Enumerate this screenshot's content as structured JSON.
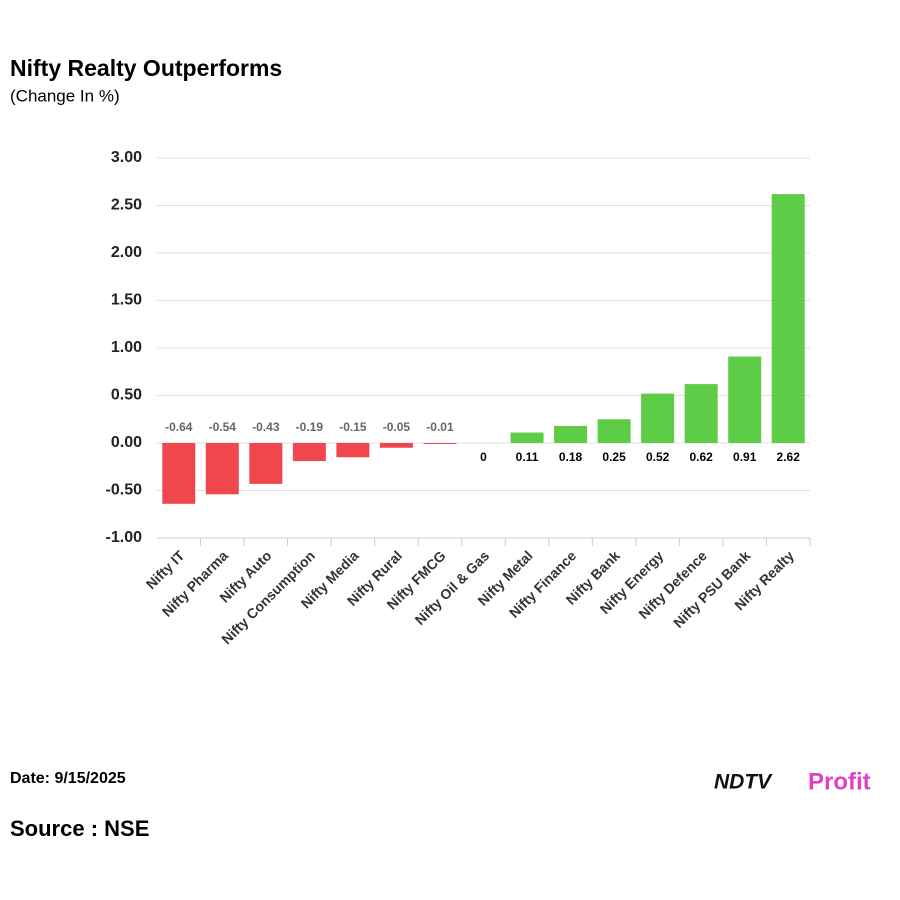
{
  "chart_data": {
    "type": "bar",
    "title": "Nifty Realty Outperforms",
    "subtitle": "(Change In %)",
    "categories": [
      "Nifty IT",
      "Nifty Pharma",
      "Nifty Auto",
      "Nifty Consumption",
      "Nifty Media",
      "Nifty Rural",
      "Nifty FMCG",
      "Nifty Oil & Gas",
      "Nifty Metal",
      "Nifty Finance",
      "Nifty Bank",
      "Nifty Energy",
      "Nifty Defence",
      "Nifty PSU Bank",
      "Nifty Realty"
    ],
    "values": [
      -0.64,
      -0.54,
      -0.43,
      -0.19,
      -0.15,
      -0.05,
      -0.01,
      0,
      0.11,
      0.18,
      0.25,
      0.52,
      0.62,
      0.91,
      2.62
    ],
    "positive_color": "#5fcc47",
    "negative_color": "#f0474f",
    "ylim": [
      -1,
      3
    ],
    "yticks": [
      {
        "value": -1,
        "label": "-1.00"
      },
      {
        "value": -0.5,
        "label": "-0.50"
      },
      {
        "value": 0,
        "label": "0.00"
      },
      {
        "value": 0.5,
        "label": "0.50"
      },
      {
        "value": 1,
        "label": "1.00"
      },
      {
        "value": 1.5,
        "label": "1.50"
      },
      {
        "value": 2,
        "label": "2.00"
      },
      {
        "value": 2.5,
        "label": "2.50"
      },
      {
        "value": 3,
        "label": "3.00"
      }
    ],
    "grid": true
  },
  "footer": {
    "date": "Date: 9/15/2025",
    "source": "Source : NSE",
    "logo_ndtv": "NDTV",
    "logo_profit": "Profit"
  }
}
